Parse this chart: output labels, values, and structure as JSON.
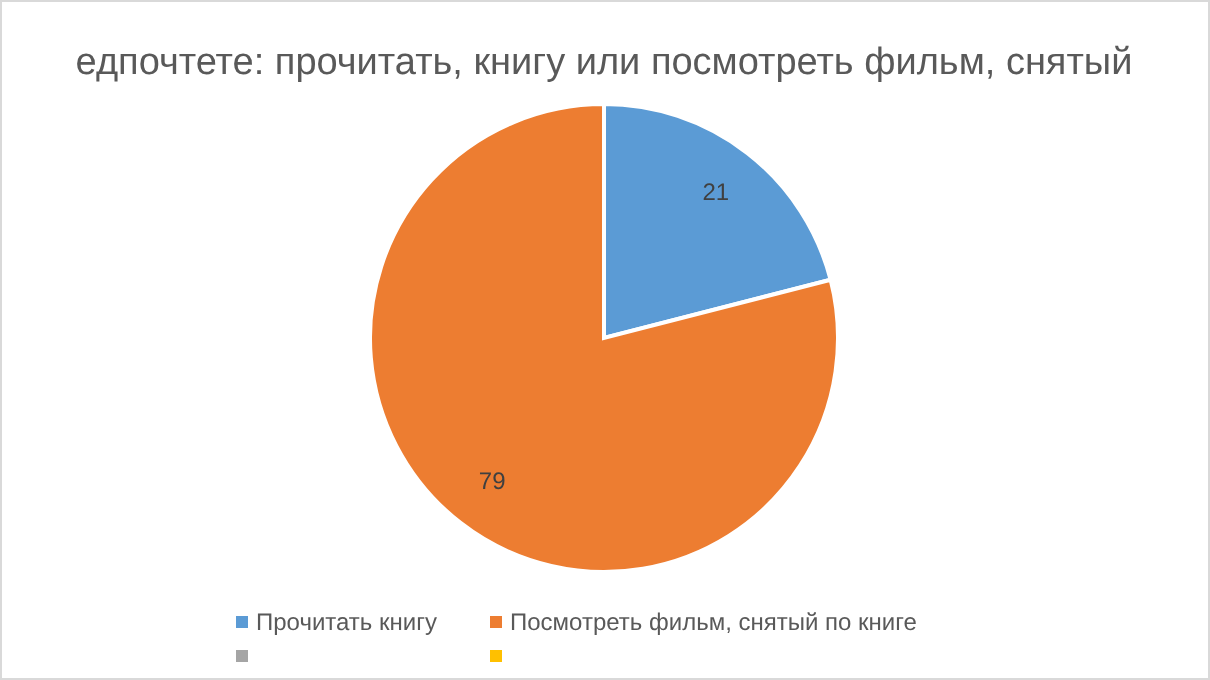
{
  "chart_data": {
    "type": "pie",
    "title": "едпочтете: прочитать, книгу или посмотреть фильм, снятый",
    "categories": [
      "Прочитать книгу",
      "Посмотреть фильм, снятый по книге",
      null,
      null
    ],
    "values": [
      21,
      79,
      null,
      null
    ],
    "colors": [
      "#5b9bd5",
      "#ed7d31",
      "#a5a5a5",
      "#ffc000"
    ],
    "data_labels": true,
    "legend": "bottom"
  }
}
